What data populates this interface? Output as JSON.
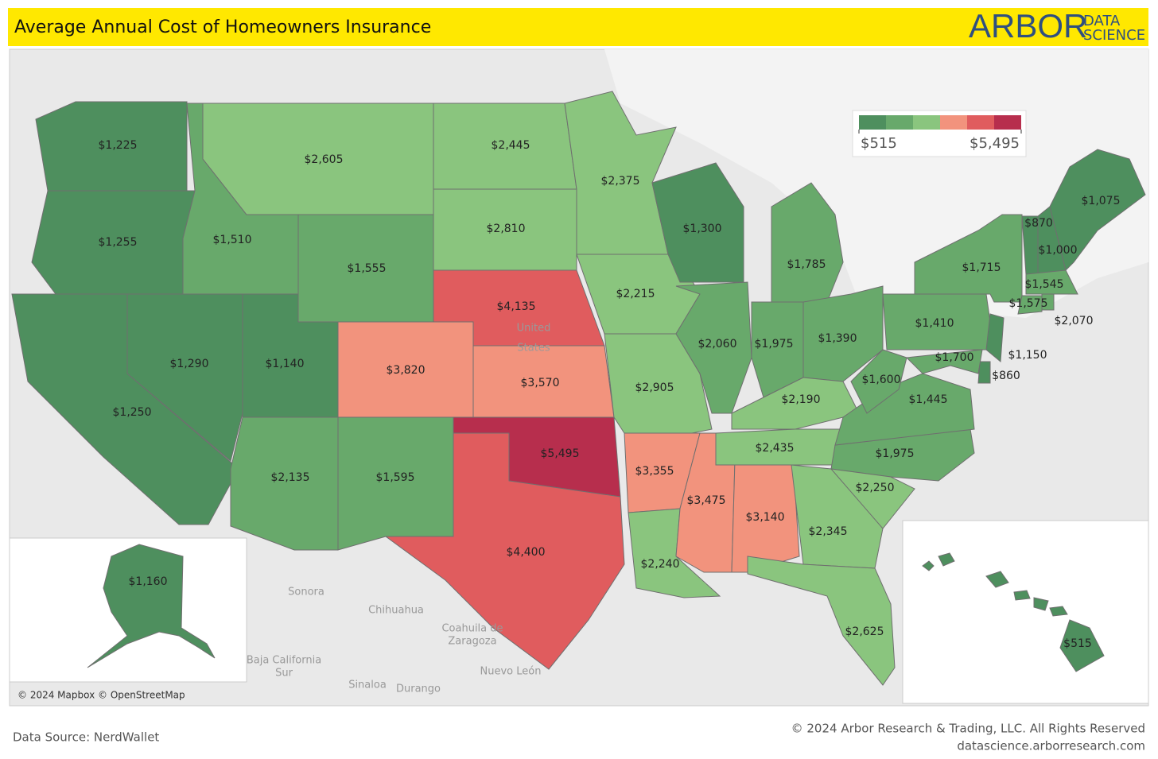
{
  "header": {
    "title": "Average Annual Cost of Homeowners Insurance",
    "logo_main": "ARBOR",
    "logo_top": "DATA",
    "logo_bottom": "SCIENCE"
  },
  "chart_data": {
    "type": "choropleth",
    "values": [
      1225,
      1255,
      1250,
      1290,
      1510,
      2605,
      1555,
      1140,
      3820,
      2135,
      1595,
      2445,
      2810,
      4135,
      3570,
      5495,
      4400,
      2375,
      2215,
      2905,
      3355,
      2240,
      3475,
      3140,
      1300,
      2060,
      1975,
      1785,
      1390,
      2190,
      2435,
      1975,
      2250,
      2345,
      2625,
      1445,
      1600,
      1410,
      1715,
      1150,
      860,
      1700,
      870,
      1000,
      1075,
      1545,
      1575,
      2070,
      1160,
      515
    ],
    "value_labels": [
      "$1,225",
      "$1,255",
      "$1,250",
      "$1,290",
      "$1,510",
      "$2,605",
      "$1,555",
      "$1,140",
      "$3,820",
      "$2,135",
      "$1,595",
      "$2,445",
      "$2,810",
      "$4,135",
      "$3,570",
      "$5,495",
      "$4,400",
      "$2,375",
      "$2,215",
      "$2,905",
      "$3,355",
      "$2,240",
      "$3,475",
      "$3,140",
      "$1,300",
      "$2,060",
      "$1,975",
      "$1,785",
      "$1,390",
      "$2,190",
      "$2,435",
      "$1,975",
      "$2,250",
      "$2,345",
      "$2,625",
      "$1,445",
      "$1,600",
      "$1,410",
      "$1,715",
      "$1,150",
      "$860",
      "$1,700",
      "$870",
      "$1,000",
      "$1,075",
      "$1,545",
      "$1,575",
      "$2,070",
      "$1,160",
      "$515"
    ],
    "colors": [
      "#4e8f5e",
      "#68a96b",
      "#8ac57e",
      "#f2937d",
      "#e05c5e",
      "#b72e4d"
    ],
    "colorlim": [
      515,
      5495
    ],
    "colorticks": [
      {
        "value": 515,
        "label": "$515"
      },
      {
        "value": 5495,
        "label": "$5,495"
      }
    ]
  },
  "basemap_labels": [
    "United",
    "States",
    "Sonora",
    "Chihuahua",
    "Coahuila de",
    "Zaragoza",
    "Baja California",
    "Sur",
    "Sinaloa",
    "Durango",
    "Nuevo León"
  ],
  "attribution": "© 2024 Mapbox © OpenStreetMap",
  "footer": {
    "source": "Data Source: NerdWallet",
    "copyright": "© 2024 Arbor Research & Trading, LLC. All Rights Reserved",
    "url": "datascience.arborresearch.com"
  }
}
